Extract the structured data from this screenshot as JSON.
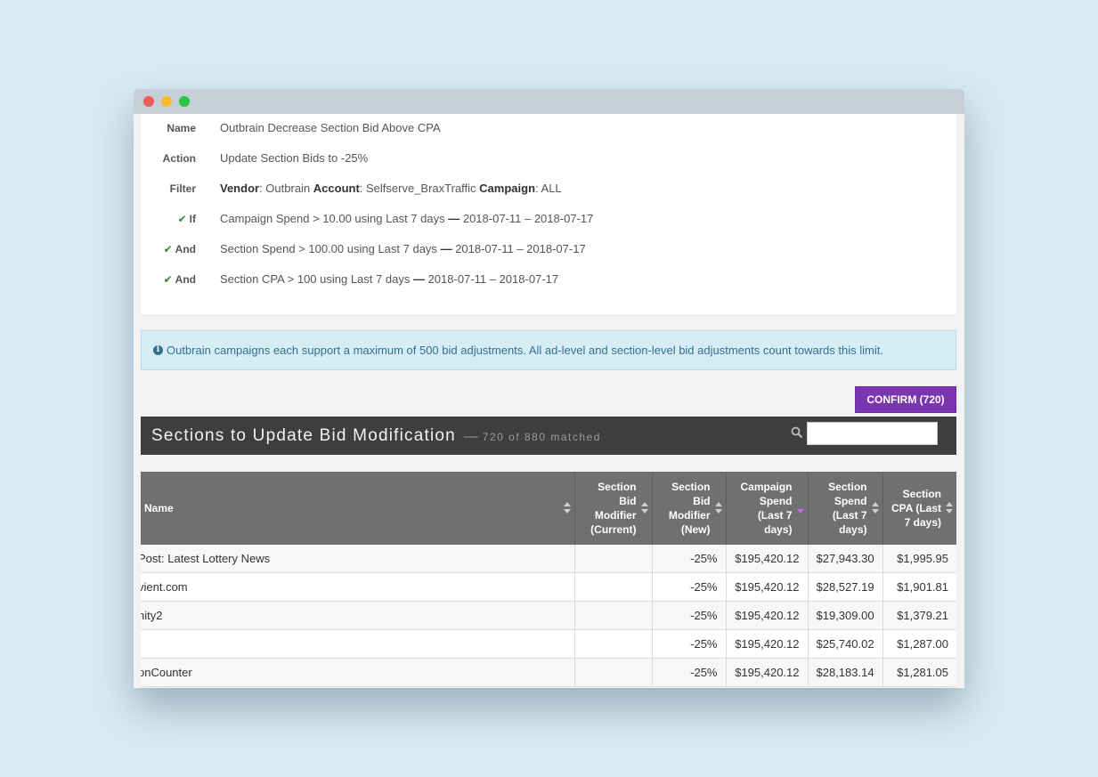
{
  "rule": {
    "rows": [
      {
        "label": "Name",
        "check": false,
        "value": "Outbrain Decrease Section Bid Above CPA"
      },
      {
        "label": "Action",
        "check": false,
        "value": "Update Section Bids to -25%"
      },
      {
        "label": "Filter",
        "check": false,
        "value": null
      },
      {
        "label": "If",
        "check": true,
        "value": "Campaign Spend > 10.00 using Last 7 days",
        "dates": "2018-07-11 – 2018-07-17"
      },
      {
        "label": "And",
        "check": true,
        "value": "Section Spend > 100.00 using Last 7 days",
        "dates": "2018-07-11 – 2018-07-17"
      },
      {
        "label": "And",
        "check": true,
        "value": "Section CPA > 100 using Last 7 days",
        "dates": "2018-07-11 – 2018-07-17"
      }
    ],
    "filter": {
      "vendor_label": "Vendor",
      "vendor_value": ": Outbrain ",
      "account_label": "Account",
      "account_value": ": Selfserve_BraxTraffic ",
      "campaign_label": "Campaign",
      "campaign_value": ": ALL"
    },
    "separator": "—",
    "check_icon": "✔"
  },
  "info": {
    "icon": "i",
    "text": "Outbrain campaigns each support a maximum of 500 bid adjustments. All ad-level and section-level bid adjustments count towards this limit."
  },
  "confirm_label": "CONFIRM (720)",
  "section": {
    "title": "Sections to Update Bid Modification",
    "dash": "—",
    "matched": "720 of 880 matched",
    "search_value": ""
  },
  "table": {
    "columns": [
      "Name",
      "Section Bid Modifier (Current)",
      "Section Bid Modifier (New)",
      "Campaign Spend (Last 7 days)",
      "Section Spend (Last 7 days)",
      "Section CPA (Last 7 days)"
    ],
    "sorted_column": "Campaign Spend (Last 7 days)",
    "rows": [
      {
        "name": "Post: Latest Lottery News",
        "current": "",
        "new": "-25%",
        "campaign_spend": "$195,420.12",
        "section_spend": "$27,943.30",
        "cpa": "$1,995.95"
      },
      {
        "name": "vient.com",
        "current": "",
        "new": "-25%",
        "campaign_spend": "$195,420.12",
        "section_spend": "$28,527.19",
        "cpa": "$1,901.81"
      },
      {
        "name": "nity2",
        "current": "",
        "new": "-25%",
        "campaign_spend": "$195,420.12",
        "section_spend": "$19,309.00",
        "cpa": "$1,379.21"
      },
      {
        "name": "",
        "current": "",
        "new": "-25%",
        "campaign_spend": "$195,420.12",
        "section_spend": "$25,740.02",
        "cpa": "$1,287.00"
      },
      {
        "name": "onCounter",
        "current": "",
        "new": "-25%",
        "campaign_spend": "$195,420.12",
        "section_spend": "$28,183.14",
        "cpa": "$1,281.05"
      }
    ]
  }
}
